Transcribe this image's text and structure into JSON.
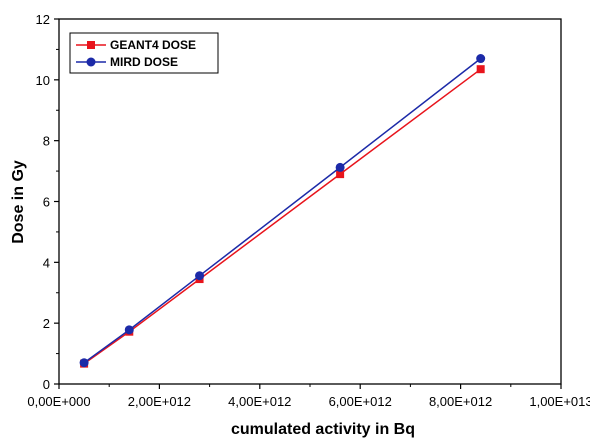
{
  "colors": {
    "geant4": "#e8141c",
    "mird": "#1c2aa8",
    "axis": "#000000",
    "background": "#ffffff"
  },
  "chart_data": {
    "type": "line",
    "title": "",
    "xlabel": "cumulated activity in Bq",
    "ylabel": "Dose in Gy",
    "xlim": [
      0,
      10000000000000.0
    ],
    "ylim": [
      0,
      12
    ],
    "xticks": [
      0,
      2000000000000.0,
      4000000000000.0,
      6000000000000.0,
      8000000000000.0,
      10000000000000.0
    ],
    "xtick_labels": [
      "0,00E+000",
      "2,00E+012",
      "4,00E+012",
      "6,00E+012",
      "8,00E+012",
      "1,00E+013"
    ],
    "yticks": [
      0,
      2,
      4,
      6,
      8,
      10,
      12
    ],
    "ytick_labels": [
      "0",
      "2",
      "4",
      "6",
      "8",
      "10",
      "12"
    ],
    "grid": false,
    "legend_position": "top-left",
    "series": [
      {
        "name": "GEANT4 DOSE",
        "marker": "square",
        "color": "#e8141c",
        "x": [
          500000000000.0,
          1400000000000.0,
          2800000000000.0,
          5600000000000.0,
          8400000000000.0
        ],
        "y": [
          0.67,
          1.72,
          3.45,
          6.9,
          10.35
        ]
      },
      {
        "name": "MIRD DOSE",
        "marker": "circle",
        "color": "#1c2aa8",
        "x": [
          500000000000.0,
          1400000000000.0,
          2800000000000.0,
          5600000000000.0,
          8400000000000.0
        ],
        "y": [
          0.7,
          1.78,
          3.56,
          7.12,
          10.7
        ]
      }
    ]
  }
}
